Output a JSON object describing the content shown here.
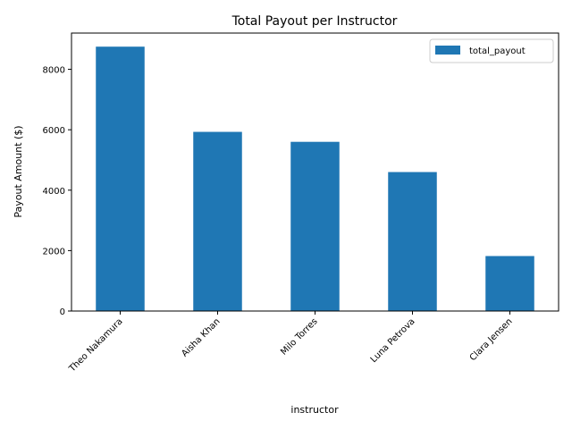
{
  "chart_data": {
    "type": "bar",
    "title": "Total Payout per Instructor",
    "xlabel": "instructor",
    "ylabel": "Payout Amount ($)",
    "categories": [
      "Theo Nakamura",
      "Aisha Khan",
      "Milo Torres",
      "Luna Petrova",
      "Clara Jensen"
    ],
    "series": [
      {
        "name": "total_payout",
        "values": [
          8750,
          5930,
          5600,
          4600,
          1820
        ],
        "color": "#1f77b4"
      }
    ],
    "ylim": [
      0,
      9200
    ],
    "yticks": [
      0,
      2000,
      4000,
      6000,
      8000
    ],
    "ytick_labels": [
      "0",
      "2000",
      "4000",
      "6000",
      "8000"
    ],
    "grid": false,
    "legend_position": "top-right",
    "xtick_rotation": 45
  }
}
